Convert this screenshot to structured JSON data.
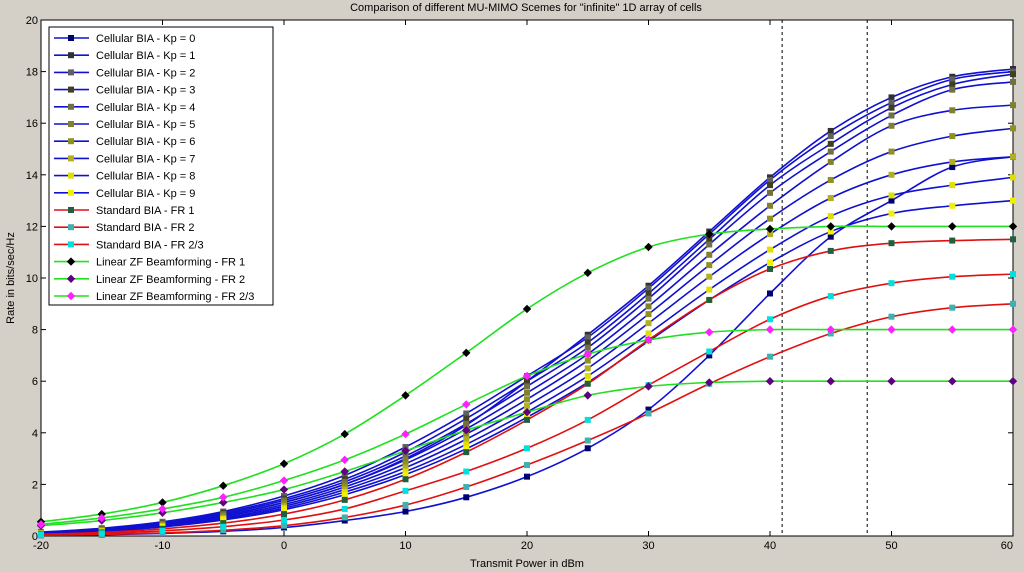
{
  "chart_data": {
    "type": "line",
    "title": "Comparison of different MU-MIMO Scemes for \"infinite\" 1D array of cells",
    "xlabel": "Transmit Power in dBm",
    "ylabel": "Rate in bits/sec/Hz",
    "xlim": [
      -20,
      60
    ],
    "ylim": [
      0,
      20
    ],
    "xticks": [
      -20,
      -10,
      0,
      10,
      20,
      30,
      40,
      50,
      60
    ],
    "yticks": [
      0,
      2,
      4,
      6,
      8,
      10,
      12,
      14,
      16,
      18,
      20
    ],
    "vlines_dashed": [
      41,
      48
    ],
    "legend_position": "top-left",
    "x": [
      -20,
      -15,
      -10,
      -5,
      0,
      5,
      10,
      15,
      20,
      25,
      30,
      35,
      40,
      45,
      50,
      55,
      60
    ],
    "series": [
      {
        "name": "Cellular BIA - Kp = 0",
        "color": "#1010d0",
        "marker": "#000070",
        "values": [
          0.03,
          0.05,
          0.1,
          0.18,
          0.33,
          0.6,
          0.95,
          1.5,
          2.3,
          3.4,
          4.9,
          7.0,
          9.4,
          11.6,
          13.0,
          14.3,
          14.7
        ]
      },
      {
        "name": "Cellular BIA - Kp = 1",
        "color": "#1010d0",
        "marker": "#303030",
        "values": [
          0.12,
          0.25,
          0.45,
          0.8,
          1.3,
          2.0,
          3.0,
          4.3,
          6.0,
          7.8,
          9.7,
          11.8,
          13.9,
          15.7,
          17.0,
          17.8,
          18.1
        ]
      },
      {
        "name": "Cellular BIA - Kp = 2",
        "color": "#1010d0",
        "marker": "#606060",
        "values": [
          0.15,
          0.3,
          0.55,
          0.95,
          1.55,
          2.35,
          3.45,
          4.75,
          6.2,
          7.7,
          9.6,
          11.7,
          13.8,
          15.5,
          16.8,
          17.7,
          18.0
        ]
      },
      {
        "name": "Cellular BIA - Kp = 3",
        "color": "#1010d0",
        "marker": "#404020",
        "values": [
          0.14,
          0.28,
          0.5,
          0.9,
          1.45,
          2.2,
          3.25,
          4.55,
          6.0,
          7.5,
          9.4,
          11.5,
          13.6,
          15.2,
          16.6,
          17.5,
          17.9
        ]
      },
      {
        "name": "Cellular BIA - Kp = 4",
        "color": "#1010d0",
        "marker": "#707040",
        "values": [
          0.13,
          0.26,
          0.48,
          0.85,
          1.38,
          2.1,
          3.1,
          4.35,
          5.8,
          7.3,
          9.2,
          11.3,
          13.3,
          14.9,
          16.3,
          17.3,
          17.6
        ]
      },
      {
        "name": "Cellular BIA - Kp = 5",
        "color": "#1010d0",
        "marker": "#808030",
        "values": [
          0.12,
          0.24,
          0.45,
          0.8,
          1.3,
          2.0,
          2.95,
          4.15,
          5.55,
          7.05,
          8.9,
          10.9,
          12.8,
          14.5,
          15.9,
          16.5,
          16.7
        ]
      },
      {
        "name": "Cellular BIA - Kp = 6",
        "color": "#1010d0",
        "marker": "#909020",
        "values": [
          0.11,
          0.22,
          0.42,
          0.75,
          1.22,
          1.9,
          2.8,
          3.95,
          5.3,
          6.8,
          8.6,
          10.5,
          12.3,
          13.8,
          14.9,
          15.5,
          15.8
        ]
      },
      {
        "name": "Cellular BIA - Kp = 7",
        "color": "#1010d0",
        "marker": "#b0b020",
        "values": [
          0.1,
          0.2,
          0.4,
          0.7,
          1.15,
          1.8,
          2.65,
          3.75,
          5.05,
          6.5,
          8.25,
          10.05,
          11.7,
          13.1,
          14.0,
          14.5,
          14.7
        ]
      },
      {
        "name": "Cellular BIA - Kp = 8",
        "color": "#1010d0",
        "marker": "#e0e000",
        "values": [
          0.09,
          0.18,
          0.37,
          0.66,
          1.08,
          1.7,
          2.5,
          3.55,
          4.8,
          6.2,
          7.85,
          9.55,
          11.1,
          12.4,
          13.2,
          13.6,
          13.9
        ]
      },
      {
        "name": "Cellular BIA - Kp = 9",
        "color": "#1010d0",
        "marker": "#f0f000",
        "values": [
          0.08,
          0.17,
          0.35,
          0.62,
          1.02,
          1.6,
          2.38,
          3.38,
          4.6,
          5.95,
          7.55,
          9.15,
          10.6,
          11.8,
          12.5,
          12.8,
          13.0
        ]
      },
      {
        "name": "Standard BIA - FR 1",
        "color": "#e01010",
        "marker": "#206040",
        "values": [
          0.07,
          0.14,
          0.28,
          0.5,
          0.85,
          1.4,
          2.2,
          3.25,
          4.5,
          5.9,
          7.6,
          9.15,
          10.35,
          11.05,
          11.35,
          11.45,
          11.5
        ]
      },
      {
        "name": "Standard BIA - FR 2",
        "color": "#e01010",
        "marker": "#40b0b0",
        "values": [
          0.03,
          0.06,
          0.12,
          0.22,
          0.4,
          0.72,
          1.2,
          1.9,
          2.75,
          3.7,
          4.75,
          5.9,
          6.95,
          7.85,
          8.5,
          8.85,
          9.0
        ]
      },
      {
        "name": "Standard BIA - FR 2/3",
        "color": "#e01010",
        "marker": "#00e0e0",
        "values": [
          0.05,
          0.1,
          0.2,
          0.36,
          0.62,
          1.05,
          1.75,
          2.5,
          3.4,
          4.5,
          5.85,
          7.15,
          8.4,
          9.3,
          9.8,
          10.05,
          10.15
        ]
      },
      {
        "name": "Linear ZF Beamforming - FR 1",
        "color": "#20e020",
        "marker": "#000000",
        "values": [
          0.55,
          0.85,
          1.3,
          1.95,
          2.8,
          3.95,
          5.45,
          7.1,
          8.8,
          10.2,
          11.2,
          11.7,
          11.9,
          12.0,
          12.0,
          12.0,
          12.0
        ]
      },
      {
        "name": "Linear ZF Beamforming - FR 2",
        "color": "#20e020",
        "marker": "#600080",
        "values": [
          0.4,
          0.6,
          0.9,
          1.3,
          1.8,
          2.5,
          3.3,
          4.1,
          4.8,
          5.45,
          5.8,
          5.95,
          6.0,
          6.0,
          6.0,
          6.0,
          6.0
        ]
      },
      {
        "name": "Linear ZF Beamforming - FR 2/3",
        "color": "#20e020",
        "marker": "#ff20ff",
        "values": [
          0.45,
          0.7,
          1.05,
          1.5,
          2.15,
          2.95,
          3.95,
          5.1,
          6.2,
          7.05,
          7.6,
          7.9,
          8.0,
          8.0,
          8.0,
          8.0,
          8.0
        ]
      }
    ]
  }
}
